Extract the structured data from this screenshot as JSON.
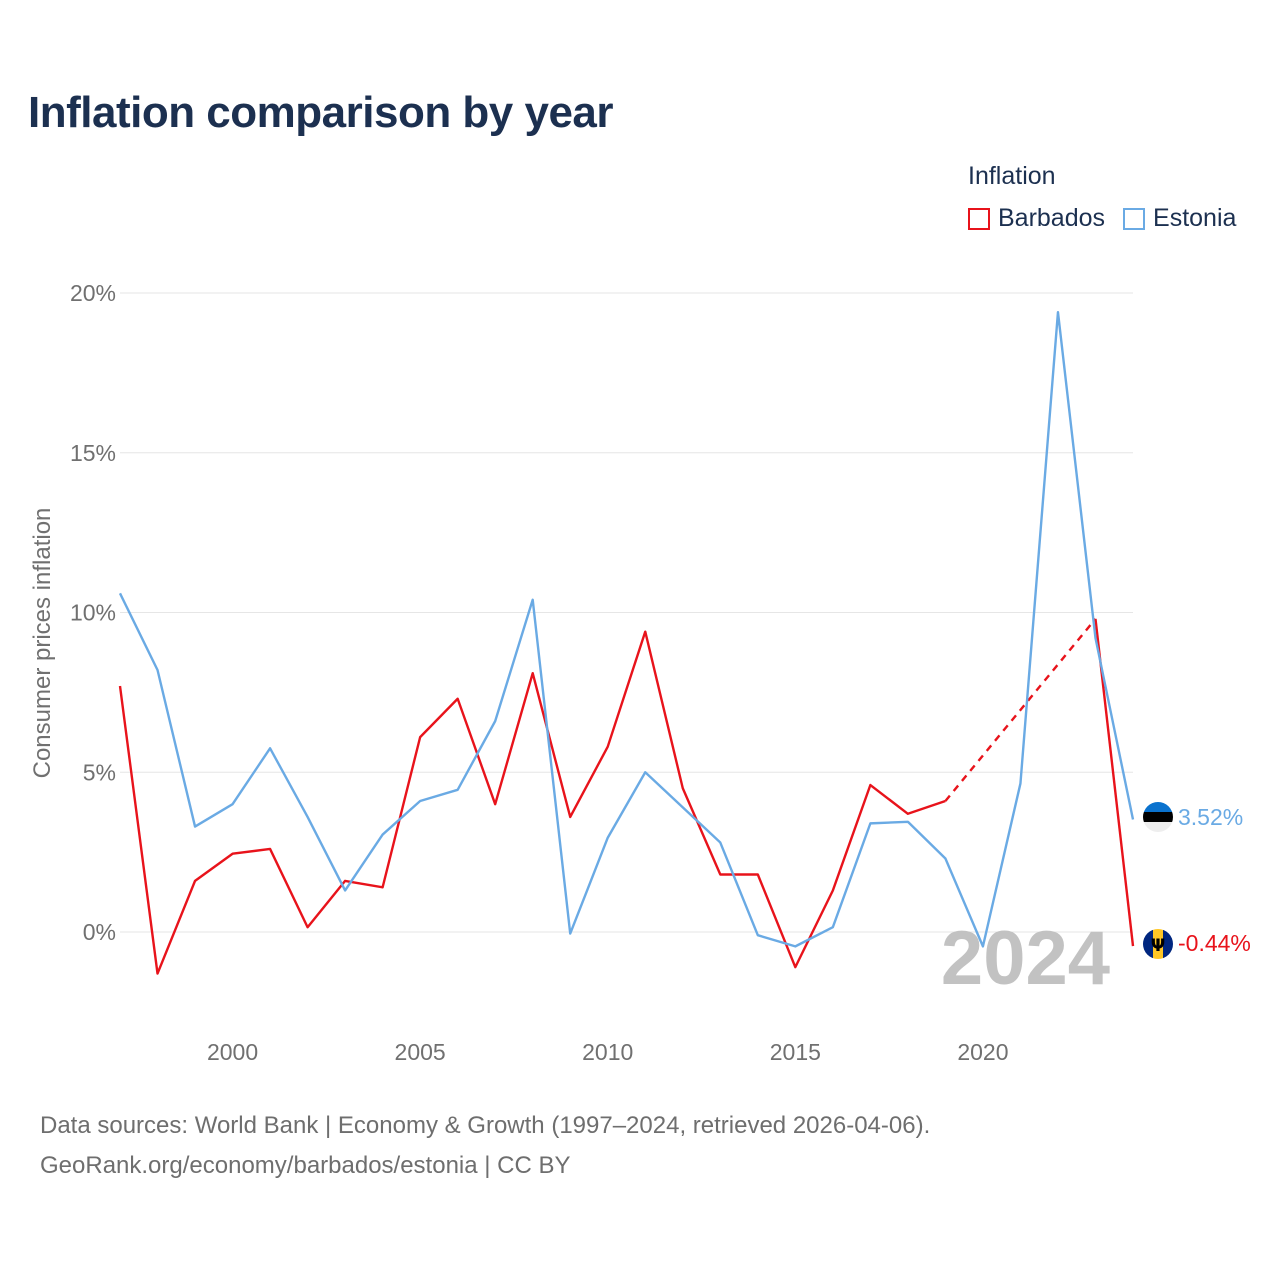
{
  "title": "Inflation comparison by year",
  "legend": {
    "title": "Inflation",
    "items": [
      {
        "name": "Barbados",
        "color": "#e8131b"
      },
      {
        "name": "Estonia",
        "color": "#6aaae4"
      }
    ]
  },
  "watermark_year": "2024",
  "footer": {
    "line1": "Data sources: World Bank | Economy & Growth (1997–2024, retrieved 2026-04-06).",
    "line2": "GeoRank.org/economy/barbados/estonia | CC BY"
  },
  "chart_data": {
    "type": "line",
    "title": "Inflation comparison by year",
    "xlabel": "",
    "ylabel": "Consumer prices inflation",
    "xlim": [
      1997,
      2024
    ],
    "ylim": [
      -2,
      20
    ],
    "x_ticks": [
      2000,
      2005,
      2010,
      2015,
      2020
    ],
    "x_tick_labels": [
      "2000",
      "2005",
      "2010",
      "2015",
      "2020"
    ],
    "y_ticks": [
      0,
      5,
      10,
      15,
      20
    ],
    "y_tick_labels": [
      "0%",
      "5%",
      "10%",
      "15%",
      "20%"
    ],
    "grid": true,
    "legend_position": "top-right",
    "x": [
      1997,
      1998,
      1999,
      2000,
      2001,
      2002,
      2003,
      2004,
      2005,
      2006,
      2007,
      2008,
      2009,
      2010,
      2011,
      2012,
      2013,
      2014,
      2015,
      2016,
      2017,
      2018,
      2019,
      2020,
      2021,
      2022,
      2023,
      2024
    ],
    "series": [
      {
        "name": "Barbados",
        "color": "#e8131b",
        "values": [
          7.7,
          -1.3,
          1.6,
          2.45,
          2.6,
          0.15,
          1.6,
          1.4,
          6.1,
          7.3,
          4.0,
          8.1,
          3.6,
          5.8,
          9.4,
          4.5,
          1.8,
          1.8,
          -1.1,
          1.3,
          4.6,
          3.7,
          4.1,
          null,
          null,
          null,
          9.8,
          -0.44
        ],
        "gap_bridge_dashed": [
          2019,
          2023
        ],
        "end_label": "-0.44%",
        "flag": "barbados-flag"
      },
      {
        "name": "Estonia",
        "color": "#6aaae4",
        "values": [
          10.6,
          8.2,
          3.3,
          4.0,
          5.75,
          3.6,
          1.3,
          3.05,
          4.1,
          4.45,
          6.6,
          10.4,
          -0.05,
          2.95,
          5.0,
          3.9,
          2.8,
          -0.1,
          -0.45,
          0.15,
          3.4,
          3.45,
          2.3,
          -0.45,
          4.65,
          19.4,
          9.2,
          3.52
        ],
        "end_label": "3.52%",
        "flag": "estonia-flag"
      }
    ]
  }
}
